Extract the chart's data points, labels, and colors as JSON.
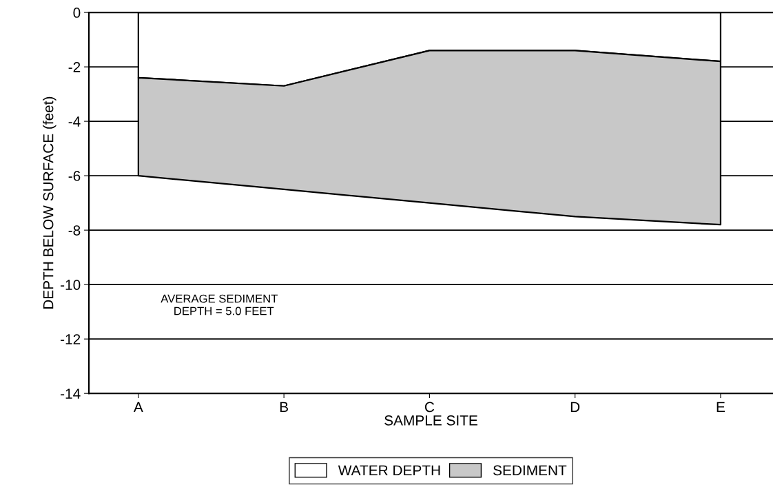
{
  "chart_data": {
    "type": "area",
    "stacked": true,
    "xlabel": "SAMPLE SITE",
    "ylabel": "DEPTH BELOW SURFACE (feet)",
    "categories": [
      "A",
      "B",
      "C",
      "D",
      "E"
    ],
    "series": [
      {
        "name": "WATER DEPTH",
        "color": "#ffffff",
        "values": [
          -2.4,
          -2.7,
          -1.4,
          -1.4,
          -1.8
        ]
      },
      {
        "name": "SEDIMENT",
        "color": "#c8c8c8",
        "values": [
          -3.6,
          -3.8,
          -5.6,
          -6.1,
          -6.0
        ]
      }
    ],
    "ylim": [
      -14,
      0
    ],
    "yticks": [
      0,
      -2,
      -4,
      -6,
      -8,
      -10,
      -12,
      -14
    ],
    "grid": "y",
    "legend": "bottom",
    "annotations": [
      "AVERAGE SEDIMENT\n    DEPTH = 5.0 FEET"
    ]
  }
}
